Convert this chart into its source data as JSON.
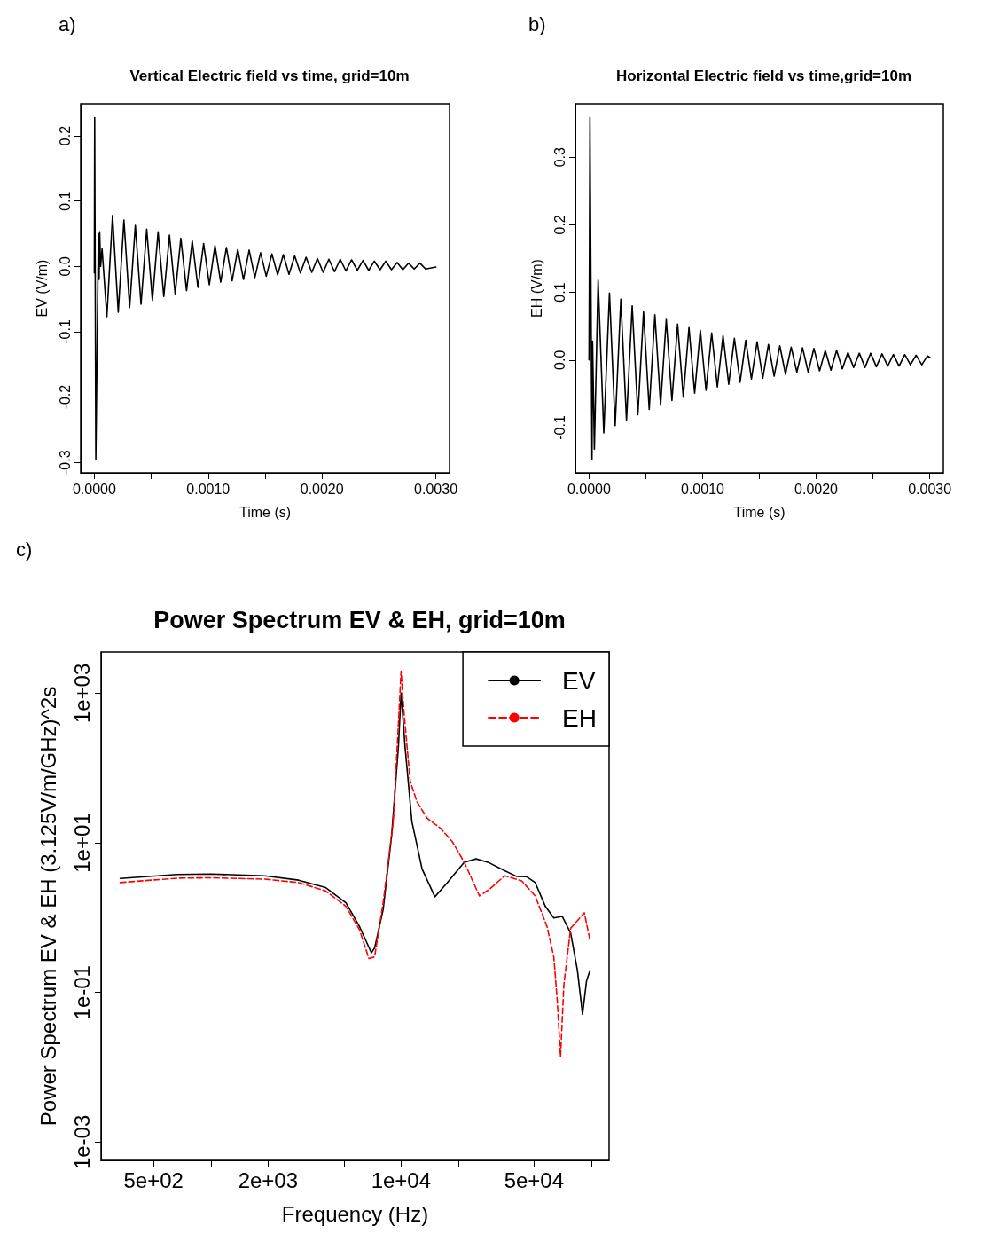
{
  "chart_data": [
    {
      "type": "line",
      "title": "Vertical Electric field vs time, grid=10m",
      "xlabel": "Time (s)",
      "ylabel": "EV (V/m)",
      "annotations": [
        "a)"
      ],
      "marker": "none",
      "xlim": [
        -0.00012,
        0.00312
      ],
      "ylim": [
        -0.316,
        0.249
      ],
      "xticks": [
        {
          "value": 0,
          "label": "0.0000"
        },
        {
          "value": 0.0005,
          "label": null
        },
        {
          "value": 0.001,
          "label": "0.0010"
        },
        {
          "value": 0.0015,
          "label": null
        },
        {
          "value": 0.002,
          "label": "0.0020"
        },
        {
          "value": 0.0025,
          "label": null
        },
        {
          "value": 0.003,
          "label": "0.0030"
        }
      ],
      "yticks": [
        -0.3,
        -0.2,
        -0.1,
        {
          "value": 0,
          "label": "0.0"
        },
        0.1,
        0.2
      ],
      "x": [
        0,
        3e-06,
        1.3e-05,
        3.6e-05,
        4.2e-05,
        4.7e-05,
        5.5e-05,
        6.8e-05,
        0.00011,
        0.00016,
        0.00021,
        0.00026,
        0.00031,
        0.00036,
        0.00041,
        0.00046,
        0.00051,
        0.00056,
        0.00061,
        0.00066,
        0.00071,
        0.00076,
        0.00081,
        0.00086,
        0.00091,
        0.00096,
        0.00101,
        0.00106,
        0.00111,
        0.00116,
        0.00121,
        0.00126,
        0.00131,
        0.00136,
        0.00141,
        0.00146,
        0.00151,
        0.00156,
        0.00161,
        0.00166,
        0.00171,
        0.00176,
        0.00181,
        0.00186,
        0.00191,
        0.00196,
        0.00201,
        0.00206,
        0.00211,
        0.00216,
        0.00221,
        0.00226,
        0.00231,
        0.00236,
        0.00241,
        0.00246,
        0.00251,
        0.00256,
        0.00261,
        0.00266,
        0.00271,
        0.00276,
        0.00281,
        0.00286,
        0.00291,
        0.003
      ],
      "series": [
        {
          "color": "#000000",
          "line_style": "solid",
          "values": [
            -0.01,
            0.228,
            -0.295,
            0.05,
            -0.02,
            0.053,
            0.0,
            0.027,
            -0.077,
            0.078,
            -0.07,
            0.071,
            -0.063,
            0.063,
            -0.058,
            0.057,
            -0.052,
            0.053,
            -0.046,
            0.048,
            -0.042,
            0.043,
            -0.037,
            0.039,
            -0.032,
            0.035,
            -0.028,
            0.032,
            -0.024,
            0.029,
            -0.022,
            0.026,
            -0.02,
            0.025,
            -0.017,
            0.021,
            -0.015,
            0.019,
            -0.013,
            0.018,
            -0.012,
            0.016,
            -0.01,
            0.014,
            -0.009,
            0.012,
            -0.009,
            0.011,
            -0.008,
            0.011,
            -0.007,
            0.01,
            -0.006,
            0.009,
            -0.006,
            0.008,
            -0.005,
            0.008,
            -0.005,
            0.006,
            -0.005,
            0.005,
            -0.004,
            0.005,
            -0.004,
            -0.001
          ]
        }
      ]
    },
    {
      "type": "line",
      "title": "Horizontal Electric field vs time,grid=10m",
      "xlabel": "Time (s)",
      "ylabel": "EH (V/m)",
      "annotations": [
        "b)"
      ],
      "marker": "none",
      "xlim": [
        -0.00012,
        0.00312
      ],
      "ylim": [
        -0.167,
        0.379
      ],
      "xticks": [
        {
          "value": 0,
          "label": "0.0000"
        },
        {
          "value": 0.0005,
          "label": null
        },
        {
          "value": 0.001,
          "label": "0.0010"
        },
        {
          "value": 0.0015,
          "label": null
        },
        {
          "value": 0.002,
          "label": "0.0020"
        },
        {
          "value": 0.0025,
          "label": null
        },
        {
          "value": 0.003,
          "label": "0.0030"
        }
      ],
      "yticks": [
        -0.1,
        {
          "value": 0,
          "label": "0.0"
        },
        0.1,
        0.2,
        0.3
      ],
      "x": [
        0,
        8e-06,
        2.6e-05,
        3.1e-05,
        4.7e-05,
        8e-05,
        0.00013,
        0.00018,
        0.00023,
        0.00028,
        0.00033,
        0.00038,
        0.00043,
        0.00048,
        0.00053,
        0.00058,
        0.00063,
        0.00068,
        0.00073,
        0.00078,
        0.00083,
        0.00088,
        0.00093,
        0.00098,
        0.00103,
        0.00108,
        0.00113,
        0.00118,
        0.00123,
        0.00128,
        0.00133,
        0.00138,
        0.00143,
        0.00148,
        0.00153,
        0.00158,
        0.00163,
        0.00168,
        0.00173,
        0.00178,
        0.00183,
        0.00188,
        0.00193,
        0.00198,
        0.00203,
        0.00208,
        0.00213,
        0.00218,
        0.00223,
        0.00228,
        0.00233,
        0.00238,
        0.00243,
        0.00248,
        0.00253,
        0.00258,
        0.00263,
        0.00268,
        0.00273,
        0.00278,
        0.00283,
        0.00288,
        0.00293,
        0.00298,
        0.003
      ],
      "series": [
        {
          "color": "#000000",
          "line_style": "solid",
          "values": [
            0,
            0.359,
            -0.147,
            0.028,
            -0.132,
            0.118,
            -0.108,
            0.099,
            -0.097,
            0.09,
            -0.089,
            0.08,
            -0.081,
            0.071,
            -0.073,
            0.067,
            -0.067,
            0.06,
            -0.06,
            0.053,
            -0.055,
            0.048,
            -0.049,
            0.044,
            -0.045,
            0.04,
            -0.04,
            0.036,
            -0.036,
            0.032,
            -0.033,
            0.029,
            -0.028,
            0.027,
            -0.027,
            0.023,
            -0.024,
            0.021,
            -0.021,
            0.019,
            -0.018,
            0.018,
            -0.018,
            0.017,
            -0.016,
            0.014,
            -0.015,
            0.014,
            -0.013,
            0.011,
            -0.011,
            0.01,
            -0.011,
            0.01,
            -0.01,
            0.009,
            -0.009,
            0.008,
            -0.009,
            0.008,
            -0.007,
            0.007,
            -0.007,
            0.006,
            0.004
          ]
        }
      ]
    },
    {
      "type": "line",
      "title": "Power Spectrum EV & EH, grid=10m",
      "xlabel": "Frequency (Hz)",
      "ylabel": "Power Spectrum EV & EH (3.125V/m/GHz)^2s",
      "annotations": [
        "c)"
      ],
      "marker": "none",
      "log": "xy",
      "legend": "top right",
      "xlim": [
        265,
        124000
      ],
      "ylim": [
        0.00057,
        3550
      ],
      "xticks": [
        {
          "value": 500,
          "label": "5e+02"
        },
        {
          "value": 1000,
          "label": null
        },
        {
          "value": 2000,
          "label": "2e+03"
        },
        {
          "value": 5000,
          "label": null
        },
        {
          "value": 10000,
          "label": "1e+04"
        },
        {
          "value": 20000,
          "label": null
        },
        {
          "value": 50000,
          "label": "5e+04"
        },
        {
          "value": 100000,
          "label": null
        }
      ],
      "yticks": [
        {
          "value": 0.001,
          "label": "1e-03"
        },
        {
          "value": 0.1,
          "label": "1e-01"
        },
        {
          "value": 10,
          "label": "1e+01"
        },
        {
          "value": 1000,
          "label": "1e+03"
        }
      ],
      "series": [
        {
          "name": "EV",
          "color": "#000000",
          "line_style": "solid",
          "x": [
            334,
            664,
            1000,
            1923,
            2897,
            4018,
            5130,
            6050,
            6982,
            7267,
            8050,
            8920,
            9680,
            10000,
            10500,
            11400,
            12900,
            15060,
            17510,
            21480,
            24790,
            28600,
            35070,
            40470,
            45770,
            50700,
            57300,
            63500,
            70300,
            77900,
            84500,
            89900,
            94400,
            98400
          ],
          "values": [
            3.34,
            3.78,
            3.82,
            3.63,
            3.17,
            2.52,
            1.58,
            0.76,
            0.339,
            0.395,
            1.28,
            12.6,
            189,
            1000,
            189,
            19.2,
            4.47,
            1.9,
            2.94,
            5.51,
            6.11,
            5.51,
            4.25,
            3.56,
            3.52,
            2.94,
            1.42,
            0.99,
            1.04,
            0.62,
            0.197,
            0.051,
            0.144,
            0.197
          ]
        },
        {
          "name": "EH",
          "color": "#ff0000",
          "line_style": "dashed",
          "x": [
            334,
            664,
            1000,
            1923,
            2897,
            4018,
            5130,
            6050,
            6776,
            7261,
            8050,
            9100,
            9750,
            10000,
            10370,
            11170,
            12100,
            13710,
            16140,
            18620,
            21480,
            25820,
            29170,
            35070,
            43050,
            50700,
            58480,
            63500,
            66220,
            68870,
            71780,
            77900,
            91840,
            98400
          ],
          "values": [
            2.94,
            3.37,
            3.41,
            3.27,
            2.94,
            2.27,
            1.42,
            0.687,
            0.284,
            0.299,
            1.58,
            19.2,
            536,
            1970,
            536,
            66.8,
            35.8,
            21.3,
            15.6,
            10.3,
            5.51,
            1.95,
            2.4,
            3.63,
            3.1,
            1.95,
            0.762,
            0.299,
            0.0773,
            0.0139,
            0.13,
            0.722,
            1.16,
            0.502
          ]
        }
      ]
    }
  ]
}
